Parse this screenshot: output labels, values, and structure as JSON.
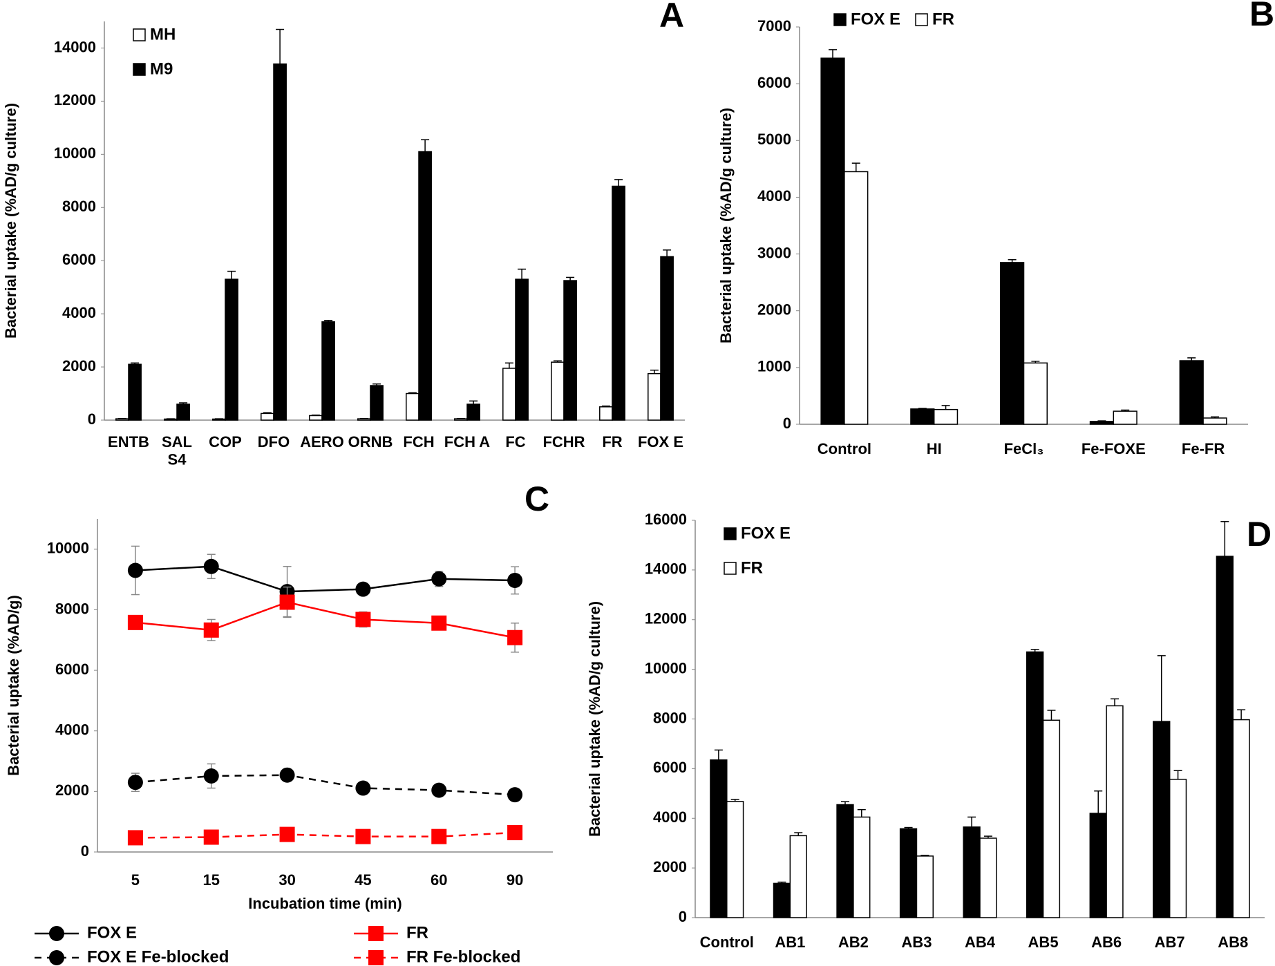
{
  "chart_data": [
    {
      "type": "bar",
      "panel": "A",
      "y_label": "Bacterial uptake (%AD/g culture)",
      "categories": [
        "ENTB",
        "SAL\nS4",
        "COP",
        "DFO",
        "AERO",
        "ORNB",
        "FCH",
        "FCH A",
        "FC",
        "FCHR",
        "FR",
        "FOX E"
      ],
      "series": [
        {
          "name": "MH",
          "color": "#ffffff",
          "values": [
            50,
            40,
            40,
            250,
            170,
            50,
            1000,
            50,
            1950,
            2180,
            500,
            1750
          ],
          "errors": [
            10,
            10,
            10,
            30,
            20,
            10,
            30,
            10,
            200,
            50,
            30,
            130
          ]
        },
        {
          "name": "M9",
          "color": "#000000",
          "values": [
            2100,
            600,
            5300,
            13400,
            3700,
            1300,
            10100,
            600,
            5300,
            5250,
            8800,
            6150
          ],
          "errors": [
            50,
            50,
            300,
            1300,
            50,
            60,
            450,
            120,
            380,
            120,
            250,
            250
          ]
        }
      ],
      "ylim": [
        0,
        15000
      ],
      "yticks": [
        0,
        2000,
        4000,
        6000,
        8000,
        10000,
        12000,
        14000
      ],
      "legend": "top-left"
    },
    {
      "type": "bar",
      "panel": "B",
      "y_label": "Bacterial uptake (%AD/g culture)",
      "categories": [
        "Control",
        "HI",
        "FeCl₃",
        "Fe-FOXE",
        "Fe-FR"
      ],
      "series": [
        {
          "name": "FOX E",
          "color": "#000000",
          "values": [
            6450,
            270,
            2850,
            50,
            1120
          ],
          "errors": [
            150,
            10,
            50,
            10,
            50
          ]
        },
        {
          "name": "FR",
          "color": "#ffffff",
          "values": [
            4450,
            260,
            1080,
            230,
            110
          ],
          "errors": [
            150,
            70,
            30,
            20,
            20
          ]
        }
      ],
      "ylim": [
        0,
        7000
      ],
      "yticks": [
        0,
        1000,
        2000,
        3000,
        4000,
        5000,
        6000,
        7000
      ],
      "legend": "top"
    },
    {
      "type": "line",
      "panel": "C",
      "y_label": "Bacterial uptake (%AD/g)",
      "x_label": "Incubation time (min)",
      "categories": [
        "5",
        "15",
        "30",
        "45",
        "60",
        "90"
      ],
      "series": [
        {
          "name": "FOX E",
          "color": "#000000",
          "marker": "circle",
          "line": "solid",
          "values": [
            9300,
            9430,
            8600,
            8680,
            9020,
            8970
          ],
          "errors": [
            800,
            400,
            830,
            150,
            250,
            450
          ]
        },
        {
          "name": "FR",
          "color": "#ff0000",
          "marker": "square",
          "line": "solid",
          "values": [
            7580,
            7330,
            8250,
            7680,
            7560,
            7080
          ],
          "errors": [
            80,
            350,
            500,
            250,
            100,
            480
          ]
        },
        {
          "name": "FOX E Fe-blocked",
          "color": "#000000",
          "marker": "circle",
          "line": "dashed",
          "values": [
            2300,
            2510,
            2540,
            2110,
            2040,
            1890
          ],
          "errors": [
            300,
            400,
            150,
            80,
            80,
            80
          ]
        },
        {
          "name": "FR Fe-blocked",
          "color": "#ff0000",
          "marker": "square",
          "line": "dashed",
          "values": [
            470,
            490,
            580,
            510,
            510,
            640
          ],
          "errors": [
            30,
            30,
            50,
            50,
            50,
            80
          ]
        }
      ],
      "ylim": [
        0,
        11000
      ],
      "yticks": [
        0,
        2000,
        4000,
        6000,
        8000,
        10000
      ],
      "legend": "bottom"
    },
    {
      "type": "bar",
      "panel": "D",
      "y_label": "Bacterial uptake (%AD/g culture)",
      "categories": [
        "Control",
        "AB1",
        "AB2",
        "AB3",
        "AB4",
        "AB5",
        "AB6",
        "AB7",
        "AB8"
      ],
      "series": [
        {
          "name": "FOX E",
          "color": "#000000",
          "values": [
            6350,
            1380,
            4550,
            3580,
            3650,
            10700,
            4200,
            7900,
            14550
          ],
          "errors": [
            400,
            50,
            120,
            50,
            400,
            100,
            900,
            2650,
            1400
          ]
        },
        {
          "name": "FR",
          "color": "#ffffff",
          "values": [
            4680,
            3300,
            4050,
            2480,
            3200,
            7950,
            8530,
            5570,
            7970
          ],
          "errors": [
            80,
            120,
            300,
            30,
            80,
            400,
            280,
            350,
            400
          ]
        }
      ],
      "ylim": [
        0,
        16000
      ],
      "yticks": [
        0,
        2000,
        4000,
        6000,
        8000,
        10000,
        12000,
        14000,
        16000
      ],
      "legend": "top-left"
    }
  ]
}
